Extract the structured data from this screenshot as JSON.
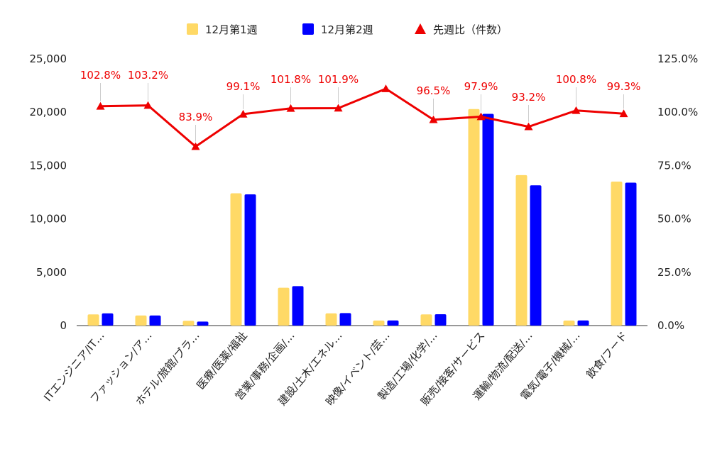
{
  "chart_data": {
    "type": "bar",
    "categories": [
      "ITエンジニア/IT…",
      "ファッション/ア…",
      "ホテル/旅館/ブラ…",
      "医療/医薬/福祉",
      "営業/事務/企画/…",
      "建設/土木/エネル…",
      "映像/イベント/芸…",
      "製造/工場/化学/…",
      "販売/接客/サービス",
      "運輸/物流/配送/…",
      "電気/電子/機械/…",
      "飲食/フード"
    ],
    "series": [
      {
        "name": "12月第1週",
        "type": "bar",
        "axis": "left",
        "color": "#ffd966",
        "values": [
          1050,
          950,
          450,
          12400,
          3550,
          1150,
          470,
          1050,
          20300,
          14100,
          470,
          13500
        ]
      },
      {
        "name": "12月第2週",
        "type": "bar",
        "axis": "left",
        "color": "#0000ff",
        "values": [
          1150,
          950,
          370,
          12300,
          3700,
          1170,
          480,
          1060,
          19850,
          13150,
          480,
          13400
        ]
      },
      {
        "name": "先週比（件数）",
        "type": "line",
        "axis": "right",
        "color": "#ee0000",
        "values": [
          102.8,
          103.2,
          83.9,
          99.1,
          101.8,
          101.9,
          111.0,
          96.5,
          97.9,
          93.2,
          100.8,
          99.3
        ],
        "data_labels": [
          "102.8%",
          "103.2%",
          "83.9%",
          "99.1%",
          "101.8%",
          "101.9%",
          "",
          "96.5%",
          "97.9%",
          "93.2%",
          "100.8%",
          "99.3%"
        ]
      }
    ],
    "y_left": {
      "min": 0,
      "max": 25000,
      "ticks": [
        "0",
        "5,000",
        "10,000",
        "15,000",
        "20,000",
        "25,000"
      ]
    },
    "y_right": {
      "min": 0,
      "max": 125,
      "ticks": [
        "0.0%",
        "25.0%",
        "50.0%",
        "75.0%",
        "100.0%",
        "125.0%"
      ]
    },
    "title": "",
    "xlabel": "",
    "ylabel": "",
    "legend_position": "top-center",
    "grid": false
  }
}
